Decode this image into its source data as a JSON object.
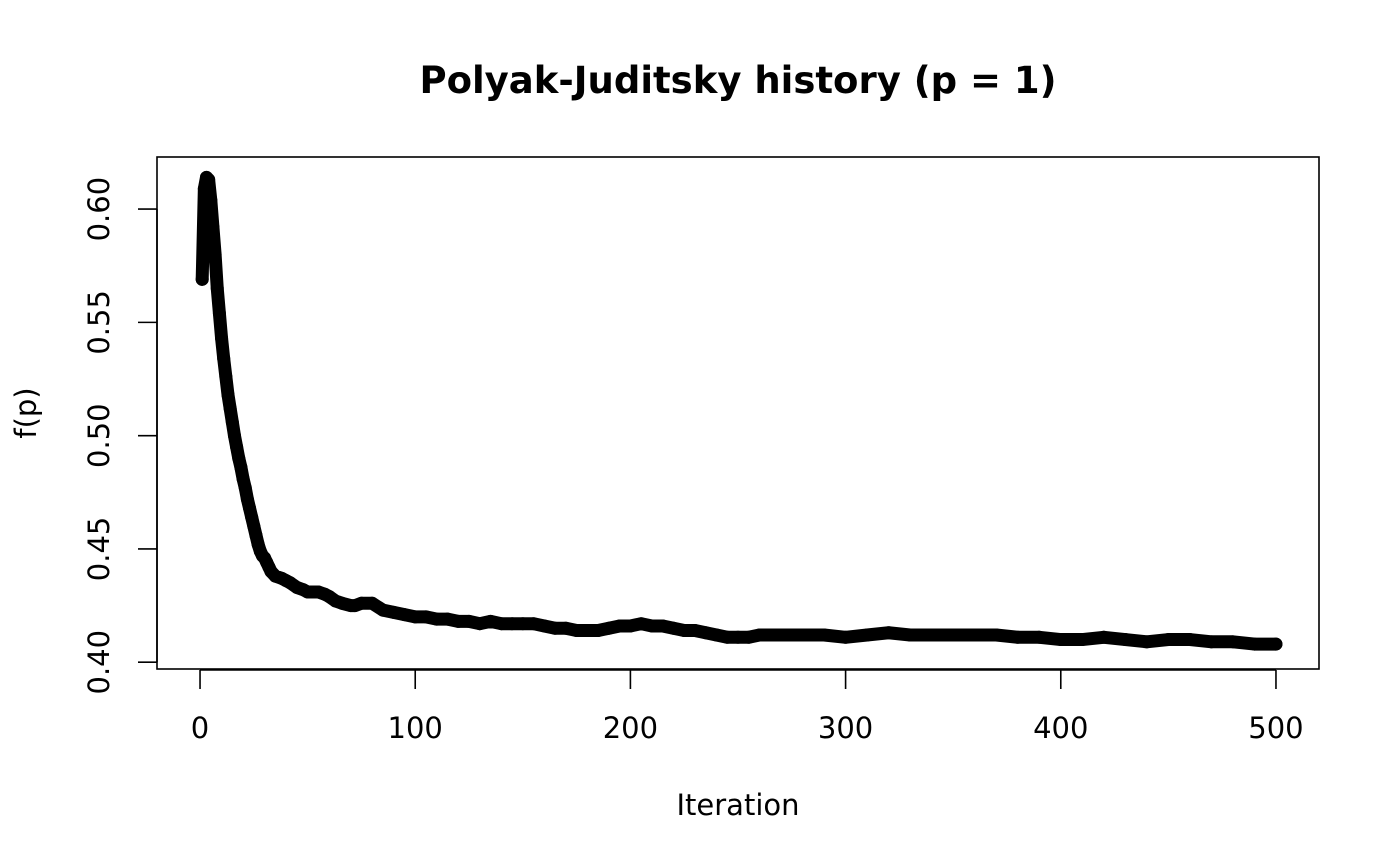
{
  "chart_data": {
    "type": "scatter",
    "title": "Polyak-Juditsky history (p = 1)",
    "xlabel": "Iteration",
    "ylabel": "f(p)",
    "xlim": [
      -20,
      520
    ],
    "ylim": [
      0.397,
      0.623
    ],
    "xticks": [
      0,
      100,
      200,
      300,
      400,
      500
    ],
    "xtick_labels": [
      "0",
      "100",
      "200",
      "300",
      "400",
      "500"
    ],
    "yticks": [
      0.4,
      0.45,
      0.5,
      0.55,
      0.6
    ],
    "ytick_labels": [
      "0.40",
      "0.45",
      "0.50",
      "0.55",
      "0.60"
    ],
    "grid": false,
    "line_segment": {
      "x": [
        1,
        2
      ],
      "y": [
        0.578,
        0.6
      ]
    },
    "points": {
      "x": [
        1,
        2,
        3,
        4,
        5,
        6,
        7,
        8,
        9,
        10,
        11,
        12,
        13,
        14,
        15,
        16,
        17,
        18,
        19,
        20,
        21,
        22,
        23,
        24,
        25,
        26,
        27,
        28,
        29,
        30,
        31,
        32,
        33,
        35,
        38,
        40,
        42,
        45,
        48,
        50,
        52,
        55,
        58,
        60,
        63,
        66,
        70,
        72,
        75,
        80,
        85,
        90,
        95,
        100,
        105,
        110,
        115,
        120,
        125,
        130,
        135,
        140,
        145,
        150,
        155,
        160,
        165,
        170,
        175,
        180,
        185,
        190,
        195,
        200,
        205,
        210,
        215,
        220,
        225,
        230,
        235,
        240,
        245,
        250,
        255,
        260,
        270,
        280,
        290,
        300,
        310,
        320,
        330,
        340,
        350,
        360,
        370,
        380,
        390,
        400,
        410,
        420,
        430,
        440,
        450,
        460,
        470,
        480,
        490,
        500
      ],
      "y": [
        0.569,
        0.609,
        0.614,
        0.613,
        0.604,
        0.592,
        0.58,
        0.565,
        0.554,
        0.543,
        0.534,
        0.526,
        0.518,
        0.512,
        0.506,
        0.5,
        0.495,
        0.49,
        0.486,
        0.481,
        0.477,
        0.472,
        0.468,
        0.464,
        0.46,
        0.456,
        0.452,
        0.449,
        0.447,
        0.446,
        0.444,
        0.442,
        0.44,
        0.438,
        0.437,
        0.436,
        0.435,
        0.433,
        0.432,
        0.431,
        0.431,
        0.431,
        0.43,
        0.429,
        0.427,
        0.426,
        0.425,
        0.425,
        0.426,
        0.426,
        0.423,
        0.422,
        0.421,
        0.42,
        0.42,
        0.419,
        0.419,
        0.418,
        0.418,
        0.417,
        0.418,
        0.417,
        0.417,
        0.417,
        0.417,
        0.416,
        0.415,
        0.415,
        0.414,
        0.414,
        0.414,
        0.415,
        0.416,
        0.416,
        0.417,
        0.416,
        0.416,
        0.415,
        0.414,
        0.414,
        0.413,
        0.412,
        0.411,
        0.411,
        0.411,
        0.412,
        0.412,
        0.412,
        0.412,
        0.411,
        0.412,
        0.413,
        0.412,
        0.412,
        0.412,
        0.412,
        0.412,
        0.411,
        0.411,
        0.41,
        0.41,
        0.411,
        0.41,
        0.409,
        0.41,
        0.41,
        0.409,
        0.409,
        0.408,
        0.408
      ]
    }
  }
}
